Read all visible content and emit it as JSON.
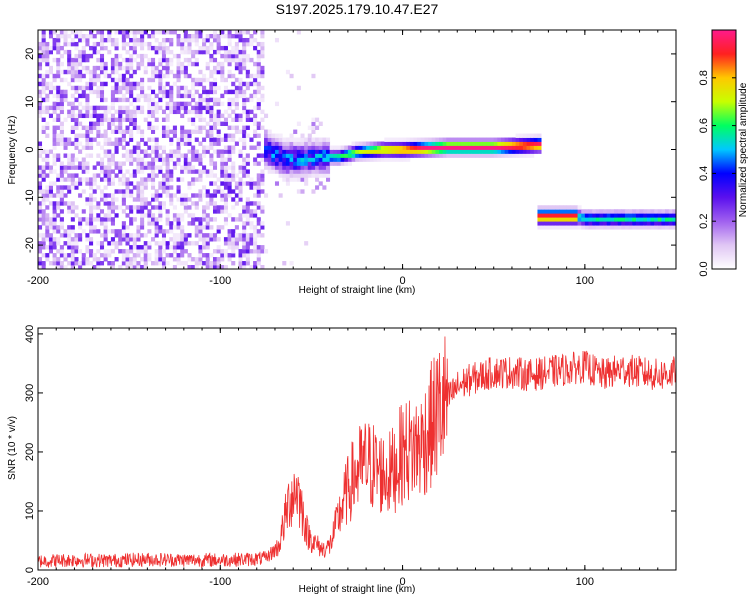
{
  "title": "S197.2025.179.10.47.E27",
  "chart_data": [
    {
      "type": "heatmap",
      "title": "S197.2025.179.10.47.E27",
      "xlabel": "Height of straight line (km)",
      "ylabel": "Frequency (Hz)",
      "xlim": [
        -200,
        150
      ],
      "ylim": [
        -25,
        25
      ],
      "xticks": [
        -200,
        -100,
        0,
        100
      ],
      "yticks": [
        -20,
        -10,
        0,
        10,
        20
      ],
      "colorbar": {
        "label": "Normalized spectral amplitude",
        "range": [
          0,
          1
        ],
        "ticks": [
          0.0,
          0.2,
          0.4,
          0.6,
          0.8
        ],
        "colors": [
          "#ffffff",
          "#e0c6f4",
          "#a060ef",
          "#5a10ee",
          "#0000ff",
          "#00c8ff",
          "#00ff60",
          "#c8ff00",
          "#ffc800",
          "#ff2020",
          "#ff1a8c"
        ]
      },
      "noise_region": {
        "x": [
          -200,
          -75
        ],
        "frequency": [
          -25,
          25
        ]
      },
      "ridge": [
        {
          "x": -75,
          "frequency": 0
        },
        {
          "x": -65,
          "frequency": -2
        },
        {
          "x": -55,
          "frequency": -2
        },
        {
          "x": -45,
          "frequency": -1.5
        },
        {
          "x": -35,
          "frequency": -1.5
        },
        {
          "x": -25,
          "frequency": -0.5
        },
        {
          "x": -10,
          "frequency": 0
        },
        {
          "x": 0,
          "frequency": 0
        },
        {
          "x": 25,
          "frequency": 0.5
        },
        {
          "x": 50,
          "frequency": 0.5
        },
        {
          "x": 75,
          "frequency": 1
        }
      ],
      "second_band": [
        {
          "x": 75,
          "frequency": -14
        },
        {
          "x": 95,
          "frequency": -14
        },
        {
          "x": 100,
          "frequency": -14.5
        },
        {
          "x": 150,
          "frequency": -14.5
        }
      ]
    },
    {
      "type": "line",
      "xlabel": "Height of straight line (km)",
      "ylabel": "SNR (10 * v/v)",
      "xlim": [
        -200,
        150
      ],
      "ylim": [
        0,
        410
      ],
      "xticks": [
        -200,
        -100,
        0,
        100
      ],
      "yticks": [
        0,
        100,
        200,
        300,
        400
      ],
      "color": "#ee3030",
      "series": [
        {
          "x": [
            -200,
            -180,
            -160,
            -140,
            -120,
            -100,
            -85,
            -75,
            -68,
            -62,
            -58,
            -55,
            -52,
            -48,
            -44,
            -40,
            -36,
            -32,
            -28,
            -24,
            -20,
            -16,
            -12,
            -8,
            -4,
            0,
            5,
            10,
            15,
            20,
            25,
            30,
            35,
            40,
            50,
            60,
            70,
            80,
            90,
            100,
            110,
            120,
            130,
            140,
            150
          ],
          "values": [
            15,
            17,
            16,
            18,
            17,
            17,
            18,
            20,
            40,
            120,
            140,
            100,
            60,
            45,
            35,
            40,
            80,
            120,
            150,
            170,
            180,
            175,
            165,
            160,
            175,
            200,
            205,
            210,
            240,
            270,
            290,
            310,
            320,
            325,
            335,
            335,
            330,
            335,
            340,
            345,
            330,
            340,
            335,
            330,
            335
          ]
        }
      ]
    }
  ]
}
